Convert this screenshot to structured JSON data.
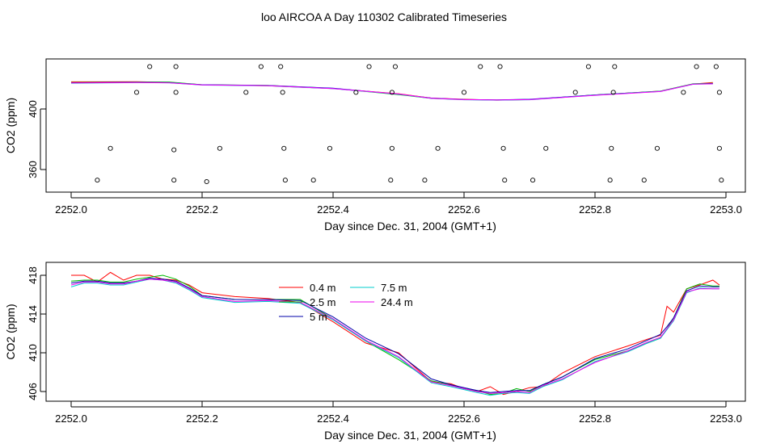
{
  "figure_title": "loo AIRCOA A  Day 110302  Calibrated Timeseries",
  "chart_data": [
    {
      "type": "scatter",
      "xlabel": "Day since Dec. 31, 2004 (GMT+1)",
      "ylabel": "CO2 (ppm)",
      "xlim": [
        2252.0,
        2253.0
      ],
      "ylim": [
        350,
        432
      ],
      "x_ticks": [
        2252.0,
        2252.2,
        2252.4,
        2252.6,
        2252.8,
        2253.0
      ],
      "x_tick_labels": [
        "2252.0",
        "2252.2",
        "2252.4",
        "2252.6",
        "2252.8",
        "2253.0"
      ],
      "y_ticks": [
        360,
        400
      ],
      "y_tick_labels": [
        "360",
        "400"
      ],
      "grid": false,
      "calibration_points": [
        {
          "x": 2252.04,
          "y": 353
        },
        {
          "x": 2252.06,
          "y": 374
        },
        {
          "x": 2252.1,
          "y": 411
        },
        {
          "x": 2252.12,
          "y": 428
        },
        {
          "x": 2252.157,
          "y": 373
        },
        {
          "x": 2252.157,
          "y": 353
        },
        {
          "x": 2252.16,
          "y": 428
        },
        {
          "x": 2252.16,
          "y": 411
        },
        {
          "x": 2252.207,
          "y": 352
        },
        {
          "x": 2252.227,
          "y": 374
        },
        {
          "x": 2252.267,
          "y": 411
        },
        {
          "x": 2252.29,
          "y": 428
        },
        {
          "x": 2252.32,
          "y": 428
        },
        {
          "x": 2252.323,
          "y": 411
        },
        {
          "x": 2252.325,
          "y": 374
        },
        {
          "x": 2252.327,
          "y": 353
        },
        {
          "x": 2252.37,
          "y": 353
        },
        {
          "x": 2252.395,
          "y": 374
        },
        {
          "x": 2252.435,
          "y": 411
        },
        {
          "x": 2252.455,
          "y": 428
        },
        {
          "x": 2252.488,
          "y": 353
        },
        {
          "x": 2252.49,
          "y": 374
        },
        {
          "x": 2252.49,
          "y": 411
        },
        {
          "x": 2252.495,
          "y": 428
        },
        {
          "x": 2252.54,
          "y": 353
        },
        {
          "x": 2252.56,
          "y": 374
        },
        {
          "x": 2252.6,
          "y": 411
        },
        {
          "x": 2252.625,
          "y": 428
        },
        {
          "x": 2252.655,
          "y": 428
        },
        {
          "x": 2252.66,
          "y": 374
        },
        {
          "x": 2252.662,
          "y": 353
        },
        {
          "x": 2252.705,
          "y": 353
        },
        {
          "x": 2252.725,
          "y": 374
        },
        {
          "x": 2252.77,
          "y": 411
        },
        {
          "x": 2252.79,
          "y": 428
        },
        {
          "x": 2252.823,
          "y": 353
        },
        {
          "x": 2252.825,
          "y": 374
        },
        {
          "x": 2252.828,
          "y": 411
        },
        {
          "x": 2252.83,
          "y": 428
        },
        {
          "x": 2252.875,
          "y": 353
        },
        {
          "x": 2252.895,
          "y": 374
        },
        {
          "x": 2252.935,
          "y": 411
        },
        {
          "x": 2252.955,
          "y": 428
        },
        {
          "x": 2252.985,
          "y": 428
        },
        {
          "x": 2252.99,
          "y": 411
        },
        {
          "x": 2252.99,
          "y": 374
        },
        {
          "x": 2252.993,
          "y": 353
        }
      ],
      "series": [
        {
          "name": "0.4 m",
          "color": "#ff0000",
          "x": [
            2252.0,
            2252.1,
            2252.15,
            2252.2,
            2252.3,
            2252.4,
            2252.5,
            2252.55,
            2252.6,
            2252.65,
            2252.7,
            2252.8,
            2252.9,
            2252.95,
            2252.98
          ],
          "y": [
            417.9,
            418.0,
            417.6,
            416.0,
            415.3,
            413.5,
            410.1,
            407.2,
            406.4,
            405.8,
            406.2,
            409.3,
            411.8,
            416.5,
            417.5
          ]
        },
        {
          "name": "2.5 m",
          "color": "#00cc00",
          "x": [
            2252.0,
            2252.1,
            2252.15,
            2252.2,
            2252.3,
            2252.4,
            2252.5,
            2252.55,
            2252.6,
            2252.65,
            2252.7,
            2252.8,
            2252.9,
            2252.95,
            2252.98
          ],
          "y": [
            417.5,
            417.7,
            417.8,
            416.0,
            415.6,
            413.6,
            409.5,
            407.0,
            406.2,
            405.9,
            406.3,
            409.3,
            411.8,
            416.7,
            416.9
          ]
        },
        {
          "name": "5 m",
          "color": "#0000cc",
          "x": [
            2252.0,
            2252.1,
            2252.15,
            2252.2,
            2252.3,
            2252.4,
            2252.5,
            2252.55,
            2252.6,
            2252.65,
            2252.7,
            2252.8,
            2252.9,
            2252.95,
            2252.98
          ],
          "y": [
            417.3,
            417.6,
            417.4,
            416.0,
            415.5,
            413.7,
            409.7,
            407.2,
            406.3,
            406.0,
            406.4,
            409.3,
            411.7,
            416.5,
            416.8
          ]
        },
        {
          "name": "7.5 m",
          "color": "#00cccc",
          "x": [
            2252.0,
            2252.1,
            2252.15,
            2252.2,
            2252.3,
            2252.4,
            2252.5,
            2252.55,
            2252.6,
            2252.65,
            2252.7,
            2252.8,
            2252.9,
            2252.95,
            2252.98
          ],
          "y": [
            417.0,
            417.4,
            417.3,
            415.8,
            415.3,
            413.4,
            409.8,
            407.0,
            406.1,
            405.8,
            406.1,
            409.1,
            411.6,
            416.3,
            416.6
          ]
        },
        {
          "name": "24.4 m",
          "color": "#ff00ff",
          "x": [
            2252.0,
            2252.1,
            2252.15,
            2252.2,
            2252.3,
            2252.4,
            2252.5,
            2252.55,
            2252.6,
            2252.65,
            2252.7,
            2252.8,
            2252.9,
            2252.95,
            2252.98
          ],
          "y": [
            417.2,
            417.5,
            417.3,
            415.9,
            415.4,
            413.5,
            409.9,
            407.1,
            406.2,
            405.9,
            406.2,
            409.0,
            411.5,
            416.4,
            416.6
          ]
        }
      ]
    },
    {
      "type": "line",
      "xlabel": "Day since Dec. 31, 2004 (GMT+1)",
      "ylabel": "CO2 (ppm)",
      "xlim": [
        2252.0,
        2253.0
      ],
      "ylim": [
        405.5,
        418.5
      ],
      "x_ticks": [
        2252.0,
        2252.2,
        2252.4,
        2252.6,
        2252.8,
        2253.0
      ],
      "x_tick_labels": [
        "2252.0",
        "2252.2",
        "2252.4",
        "2252.6",
        "2252.8",
        "2253.0"
      ],
      "y_ticks": [
        406,
        410,
        414,
        418
      ],
      "y_tick_labels": [
        "406",
        "410",
        "414",
        "418"
      ],
      "grid": false,
      "legend_position": "top-center",
      "series": [
        {
          "name": "0.4 m",
          "color": "#ff0000",
          "x": [
            2252.0,
            2252.02,
            2252.04,
            2252.06,
            2252.08,
            2252.1,
            2252.12,
            2252.14,
            2252.16,
            2252.18,
            2252.2,
            2252.25,
            2252.3,
            2252.35,
            2252.4,
            2252.45,
            2252.5,
            2252.55,
            2252.58,
            2252.6,
            2252.62,
            2252.64,
            2252.66,
            2252.68,
            2252.7,
            2252.72,
            2252.75,
            2252.8,
            2252.85,
            2252.88,
            2252.9,
            2252.91,
            2252.92,
            2252.94,
            2252.96,
            2252.98,
            2252.99
          ],
          "y": [
            418.0,
            418.0,
            417.3,
            418.3,
            417.5,
            418.0,
            418.0,
            417.6,
            417.5,
            417.0,
            416.2,
            415.8,
            415.6,
            415.2,
            413.2,
            411.0,
            410.0,
            407.0,
            406.8,
            406.3,
            406.0,
            406.5,
            405.7,
            406.0,
            406.4,
            406.5,
            407.9,
            409.6,
            410.7,
            411.4,
            411.8,
            414.8,
            414.2,
            416.6,
            417.0,
            417.5,
            417.0
          ]
        },
        {
          "name": "2.5 m",
          "color": "#00bb00",
          "x": [
            2252.0,
            2252.02,
            2252.04,
            2252.06,
            2252.08,
            2252.1,
            2252.12,
            2252.14,
            2252.16,
            2252.18,
            2252.2,
            2252.25,
            2252.3,
            2252.35,
            2252.4,
            2252.45,
            2252.5,
            2252.55,
            2252.58,
            2252.6,
            2252.62,
            2252.64,
            2252.66,
            2252.68,
            2252.7,
            2252.72,
            2252.75,
            2252.8,
            2252.85,
            2252.88,
            2252.9,
            2252.91,
            2252.92,
            2252.94,
            2252.96,
            2252.98,
            2252.99
          ],
          "y": [
            417.4,
            417.5,
            417.5,
            417.3,
            417.3,
            417.6,
            417.8,
            418.0,
            417.6,
            416.9,
            415.9,
            415.5,
            415.5,
            415.5,
            413.5,
            411.2,
            409.3,
            407.1,
            406.7,
            406.3,
            406.1,
            405.7,
            405.8,
            406.3,
            406.0,
            406.7,
            407.5,
            409.3,
            410.2,
            411.0,
            411.5,
            412.5,
            413.6,
            416.6,
            417.1,
            416.9,
            416.9
          ]
        },
        {
          "name": "5 m",
          "color": "#0000aa",
          "x": [
            2252.0,
            2252.02,
            2252.04,
            2252.06,
            2252.08,
            2252.1,
            2252.12,
            2252.14,
            2252.16,
            2252.18,
            2252.2,
            2252.25,
            2252.3,
            2252.35,
            2252.4,
            2252.45,
            2252.5,
            2252.55,
            2252.58,
            2252.6,
            2252.62,
            2252.64,
            2252.66,
            2252.68,
            2252.7,
            2252.72,
            2252.75,
            2252.8,
            2252.85,
            2252.88,
            2252.9,
            2252.91,
            2252.92,
            2252.94,
            2252.96,
            2252.98,
            2252.99
          ],
          "y": [
            417.2,
            417.4,
            417.4,
            417.2,
            417.2,
            417.4,
            417.7,
            417.6,
            417.4,
            416.7,
            415.9,
            415.5,
            415.5,
            415.4,
            413.7,
            411.5,
            409.9,
            407.3,
            406.7,
            406.4,
            406.1,
            405.9,
            406.0,
            406.1,
            406.1,
            406.7,
            407.5,
            409.4,
            410.4,
            411.3,
            411.9,
            412.7,
            413.6,
            416.4,
            416.9,
            416.8,
            416.8
          ]
        },
        {
          "name": "7.5 m",
          "color": "#00cccc",
          "x": [
            2252.0,
            2252.02,
            2252.04,
            2252.06,
            2252.08,
            2252.1,
            2252.12,
            2252.14,
            2252.16,
            2252.18,
            2252.2,
            2252.25,
            2252.3,
            2252.35,
            2252.4,
            2252.45,
            2252.5,
            2252.55,
            2252.58,
            2252.6,
            2252.62,
            2252.64,
            2252.66,
            2252.68,
            2252.7,
            2252.72,
            2252.75,
            2252.8,
            2252.85,
            2252.88,
            2252.9,
            2252.91,
            2252.92,
            2252.94,
            2252.96,
            2252.98,
            2252.99
          ],
          "y": [
            416.8,
            417.2,
            417.2,
            417.0,
            417.0,
            417.3,
            417.6,
            417.5,
            417.2,
            416.5,
            415.7,
            415.2,
            415.3,
            415.1,
            413.4,
            411.2,
            409.5,
            406.9,
            406.5,
            406.2,
            405.9,
            405.6,
            405.8,
            405.9,
            405.8,
            406.5,
            407.2,
            409.1,
            410.1,
            411.0,
            411.5,
            412.4,
            413.3,
            416.2,
            416.7,
            416.6,
            416.6
          ]
        },
        {
          "name": "24.4 m",
          "color": "#ee00ee",
          "x": [
            2252.0,
            2252.02,
            2252.04,
            2252.06,
            2252.08,
            2252.1,
            2252.12,
            2252.14,
            2252.16,
            2252.18,
            2252.2,
            2252.25,
            2252.3,
            2252.35,
            2252.4,
            2252.45,
            2252.5,
            2252.55,
            2252.58,
            2252.6,
            2252.62,
            2252.64,
            2252.66,
            2252.68,
            2252.7,
            2252.72,
            2252.75,
            2252.8,
            2252.85,
            2252.88,
            2252.9,
            2252.91,
            2252.92,
            2252.94,
            2252.96,
            2252.98,
            2252.99
          ],
          "y": [
            417.0,
            417.3,
            417.3,
            417.1,
            417.1,
            417.4,
            417.6,
            417.5,
            417.3,
            416.6,
            415.8,
            415.3,
            415.4,
            415.2,
            413.5,
            411.3,
            409.6,
            407.0,
            406.6,
            406.3,
            406.0,
            405.8,
            405.9,
            406.0,
            405.9,
            406.6,
            407.3,
            409.0,
            410.2,
            411.1,
            411.6,
            412.5,
            413.4,
            416.3,
            416.6,
            416.6,
            416.6
          ]
        }
      ]
    }
  ]
}
